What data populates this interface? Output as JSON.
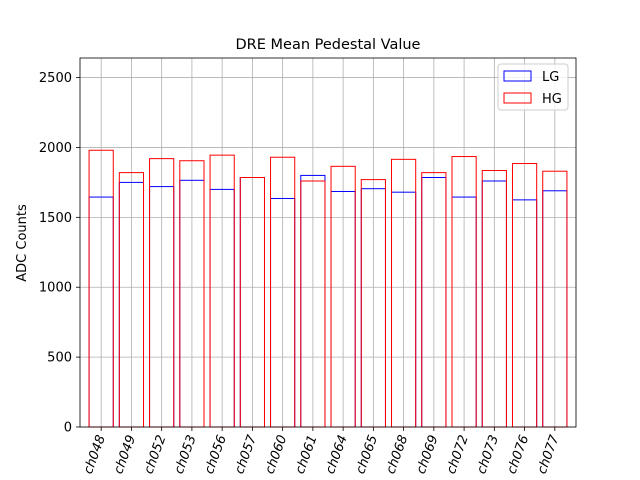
{
  "chart_data": {
    "type": "bar",
    "title": "DRE Mean Pedestal Value",
    "xlabel": "",
    "ylabel": "ADC Counts",
    "categories": [
      "ch048",
      "ch049",
      "ch052",
      "ch053",
      "ch056",
      "ch057",
      "ch060",
      "ch061",
      "ch064",
      "ch065",
      "ch068",
      "ch069",
      "ch072",
      "ch073",
      "ch076",
      "ch077"
    ],
    "series": [
      {
        "name": "LG",
        "color": "#0000ff",
        "values": [
          1645,
          1750,
          1720,
          1765,
          1700,
          1785,
          1635,
          1800,
          1685,
          1705,
          1680,
          1785,
          1645,
          1760,
          1625,
          1690
        ]
      },
      {
        "name": "HG",
        "color": "#ff0000",
        "values": [
          1980,
          1820,
          1920,
          1905,
          1945,
          1785,
          1930,
          1760,
          1865,
          1770,
          1915,
          1820,
          1935,
          1835,
          1885,
          1830
        ]
      }
    ],
    "ylim": [
      0,
      2640
    ],
    "yticks": [
      0,
      500,
      1000,
      1500,
      2000,
      2500
    ],
    "grid": true,
    "legend_position": "top-right",
    "bar_fill": "none"
  }
}
